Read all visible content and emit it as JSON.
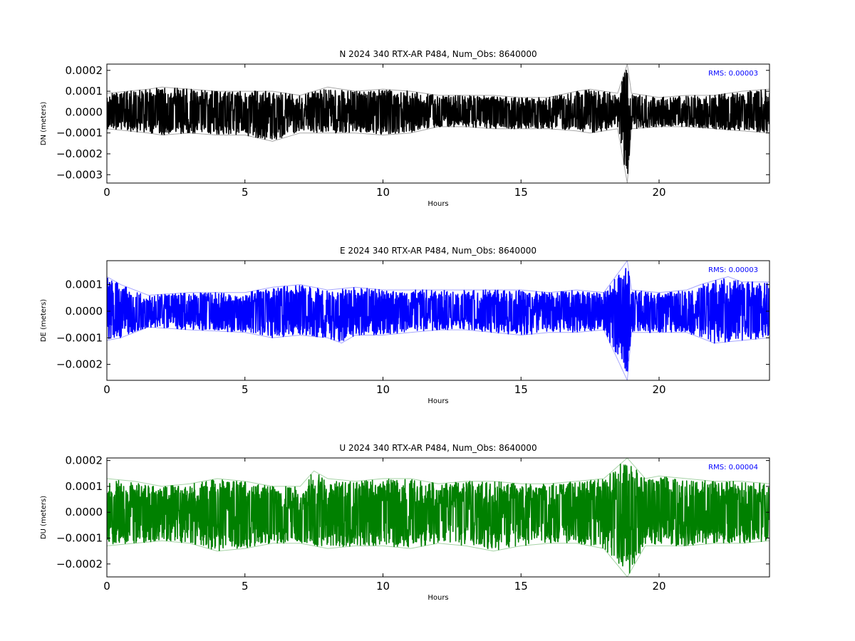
{
  "chart_data": [
    {
      "type": "line",
      "title": "N 2024 340 RTX-AR  P484, Num_Obs: 8640000",
      "xlabel": "Hours",
      "ylabel": "DN (meters)",
      "xlim": [
        0,
        24
      ],
      "ylim": [
        -0.00034,
        0.00023
      ],
      "xticks": [
        0,
        5,
        10,
        15,
        20
      ],
      "xtick_labels": [
        "0",
        "5",
        "10",
        "15",
        "20"
      ],
      "yticks": [
        0.0002,
        0.0001,
        0.0,
        -0.0001,
        -0.0002,
        -0.0003
      ],
      "ytick_labels": [
        "0.0002",
        "0.0001",
        "0.0000",
        "−0.0001",
        "−0.0002",
        "−0.0003"
      ],
      "grid": false,
      "color": "#000000",
      "rms_label": "RMS:  0.00003",
      "rms_color": "#0000ff",
      "series": [
        {
          "points": [
            [
              0.0,
              9e-05
            ],
            [
              1.5,
              0.00011
            ],
            [
              2.0,
              0.00012
            ],
            [
              3.0,
              0.00011
            ],
            [
              4.0,
              0.0001
            ],
            [
              5.0,
              0.0001
            ],
            [
              6.0,
              0.0001
            ],
            [
              7.0,
              8e-05
            ],
            [
              8.0,
              0.00012
            ],
            [
              9.0,
              0.0001
            ],
            [
              10.0,
              0.00011
            ],
            [
              11.0,
              0.0001
            ],
            [
              12.0,
              8e-05
            ],
            [
              13.0,
              8e-05
            ],
            [
              14.0,
              8e-05
            ],
            [
              15.0,
              7e-05
            ],
            [
              16.0,
              7e-05
            ],
            [
              17.0,
              0.0001
            ],
            [
              17.5,
              0.00011
            ],
            [
              18.5,
              9e-05
            ],
            [
              18.85,
              0.00023
            ],
            [
              19.0,
              9e-05
            ],
            [
              20.0,
              7e-05
            ],
            [
              21.0,
              8e-05
            ],
            [
              22.0,
              8e-05
            ],
            [
              23.0,
              0.0001
            ],
            [
              24.0,
              0.00011
            ]
          ]
        },
        {
          "points": [
            [
              0.0,
              -8e-05
            ],
            [
              1.5,
              -0.0001
            ],
            [
              2.0,
              -0.00011
            ],
            [
              3.0,
              -0.0001
            ],
            [
              4.0,
              -0.00011
            ],
            [
              5.0,
              -0.00011
            ],
            [
              6.0,
              -0.00014
            ],
            [
              7.0,
              -0.0001
            ],
            [
              8.0,
              -0.0001
            ],
            [
              9.0,
              -0.0001
            ],
            [
              10.0,
              -0.00011
            ],
            [
              11.0,
              -0.0001
            ],
            [
              12.0,
              -7e-05
            ],
            [
              13.0,
              -7e-05
            ],
            [
              14.0,
              -8e-05
            ],
            [
              15.0,
              -8e-05
            ],
            [
              16.0,
              -8e-05
            ],
            [
              17.0,
              -9e-05
            ],
            [
              17.5,
              -0.0001
            ],
            [
              18.5,
              -8e-05
            ],
            [
              18.85,
              -0.00034
            ],
            [
              19.0,
              -8e-05
            ],
            [
              20.0,
              -7e-05
            ],
            [
              21.0,
              -7e-05
            ],
            [
              22.0,
              -8e-05
            ],
            [
              23.0,
              -9e-05
            ],
            [
              24.0,
              -0.0001
            ]
          ]
        }
      ]
    },
    {
      "type": "line",
      "title": "E 2024 340 RTX-AR  P484, Num_Obs: 8640000",
      "xlabel": "Hours",
      "ylabel": "DE (meters)",
      "xlim": [
        0,
        24
      ],
      "ylim": [
        -0.00026,
        0.00019
      ],
      "xticks": [
        0,
        5,
        10,
        15,
        20
      ],
      "xtick_labels": [
        "0",
        "5",
        "10",
        "15",
        "20"
      ],
      "yticks": [
        0.0001,
        0.0,
        -0.0001,
        -0.0002
      ],
      "ytick_labels": [
        "0.0001",
        "0.0000",
        "−0.0001",
        "−0.0002"
      ],
      "grid": false,
      "color": "#0000ff",
      "rms_label": "RMS:  0.00003",
      "rms_color": "#0000ff",
      "series": [
        {
          "points": [
            [
              0.0,
              0.00013
            ],
            [
              0.5,
              0.0001
            ],
            [
              1.5,
              6e-05
            ],
            [
              3.0,
              7e-05
            ],
            [
              5.0,
              7e-05
            ],
            [
              6.0,
              9e-05
            ],
            [
              7.0,
              0.0001
            ],
            [
              8.0,
              8e-05
            ],
            [
              9.0,
              9e-05
            ],
            [
              10.0,
              8e-05
            ],
            [
              11.0,
              8e-05
            ],
            [
              12.0,
              8e-05
            ],
            [
              13.0,
              8e-05
            ],
            [
              14.0,
              8e-05
            ],
            [
              15.0,
              8e-05
            ],
            [
              16.0,
              7e-05
            ],
            [
              17.0,
              8e-05
            ],
            [
              18.0,
              7e-05
            ],
            [
              18.85,
              0.00019
            ],
            [
              19.0,
              8e-05
            ],
            [
              20.0,
              7e-05
            ],
            [
              21.0,
              8e-05
            ],
            [
              21.5,
              0.0001
            ],
            [
              22.5,
              0.00013
            ],
            [
              23.0,
              0.00011
            ],
            [
              24.0,
              0.00011
            ]
          ]
        },
        {
          "points": [
            [
              0.0,
              -0.00011
            ],
            [
              0.5,
              -0.0001
            ],
            [
              1.5,
              -6e-05
            ],
            [
              3.0,
              -7e-05
            ],
            [
              5.0,
              -8e-05
            ],
            [
              6.0,
              -0.0001
            ],
            [
              7.0,
              -9e-05
            ],
            [
              8.0,
              -0.0001
            ],
            [
              8.5,
              -0.00012
            ],
            [
              9.0,
              -9e-05
            ],
            [
              10.0,
              -9e-05
            ],
            [
              11.0,
              -8e-05
            ],
            [
              12.0,
              -7e-05
            ],
            [
              13.0,
              -7e-05
            ],
            [
              14.0,
              -8e-05
            ],
            [
              15.0,
              -9e-05
            ],
            [
              16.0,
              -8e-05
            ],
            [
              17.0,
              -8e-05
            ],
            [
              18.0,
              -7e-05
            ],
            [
              18.85,
              -0.00026
            ],
            [
              19.0,
              -8e-05
            ],
            [
              20.0,
              -8e-05
            ],
            [
              21.0,
              -8e-05
            ],
            [
              22.0,
              -0.00012
            ],
            [
              23.0,
              -0.00011
            ],
            [
              24.0,
              -0.0001
            ]
          ]
        }
      ]
    },
    {
      "type": "line",
      "title": "U 2024 340 RTX-AR  P484, Num_Obs: 8640000",
      "xlabel": "Hours",
      "ylabel": "DU (meters)",
      "xlim": [
        0,
        24
      ],
      "ylim": [
        -0.00025,
        0.00021
      ],
      "xticks": [
        0,
        5,
        10,
        15,
        20
      ],
      "xtick_labels": [
        "0",
        "5",
        "10",
        "15",
        "20"
      ],
      "yticks": [
        0.0002,
        0.0001,
        0.0,
        -0.0001,
        -0.0002
      ],
      "ytick_labels": [
        "0.0002",
        "0.0001",
        "0.0000",
        "−0.0001",
        "−0.0002"
      ],
      "grid": false,
      "color": "#008000",
      "rms_label": "RMS:  0.00004",
      "rms_color": "#0000ff",
      "series": [
        {
          "points": [
            [
              0.0,
              0.00013
            ],
            [
              1.0,
              0.00012
            ],
            [
              2.0,
              0.0001
            ],
            [
              3.0,
              0.00011
            ],
            [
              4.0,
              0.00013
            ],
            [
              5.0,
              0.00012
            ],
            [
              6.0,
              0.0001
            ],
            [
              7.0,
              0.0001
            ],
            [
              7.5,
              0.00016
            ],
            [
              8.0,
              0.00013
            ],
            [
              9.0,
              0.00012
            ],
            [
              10.0,
              0.00013
            ],
            [
              11.0,
              0.00013
            ],
            [
              12.0,
              0.00011
            ],
            [
              13.0,
              0.00012
            ],
            [
              14.0,
              0.00012
            ],
            [
              15.0,
              0.00011
            ],
            [
              16.0,
              0.00011
            ],
            [
              17.0,
              0.00012
            ],
            [
              18.0,
              0.00013
            ],
            [
              18.85,
              0.00021
            ],
            [
              19.5,
              0.00013
            ],
            [
              20.0,
              0.00014
            ],
            [
              21.0,
              0.00013
            ],
            [
              22.0,
              0.00012
            ],
            [
              23.0,
              0.00012
            ],
            [
              24.0,
              0.00011
            ]
          ]
        },
        {
          "points": [
            [
              0.0,
              -0.00013
            ],
            [
              1.0,
              -0.00012
            ],
            [
              2.0,
              -0.00011
            ],
            [
              3.0,
              -0.00012
            ],
            [
              4.0,
              -0.00015
            ],
            [
              5.0,
              -0.00014
            ],
            [
              6.0,
              -0.00012
            ],
            [
              7.0,
              -0.00012
            ],
            [
              8.0,
              -0.00014
            ],
            [
              9.0,
              -0.00013
            ],
            [
              10.0,
              -0.00013
            ],
            [
              11.0,
              -0.00014
            ],
            [
              12.0,
              -0.00012
            ],
            [
              13.0,
              -0.00013
            ],
            [
              14.0,
              -0.00015
            ],
            [
              15.0,
              -0.00013
            ],
            [
              16.0,
              -0.00012
            ],
            [
              17.0,
              -0.00012
            ],
            [
              18.0,
              -0.00014
            ],
            [
              18.85,
              -0.00025
            ],
            [
              19.5,
              -0.00013
            ],
            [
              20.0,
              -0.00013
            ],
            [
              21.0,
              -0.00013
            ],
            [
              22.0,
              -0.00012
            ],
            [
              23.0,
              -0.00012
            ],
            [
              24.0,
              -0.00011
            ]
          ]
        }
      ]
    }
  ]
}
